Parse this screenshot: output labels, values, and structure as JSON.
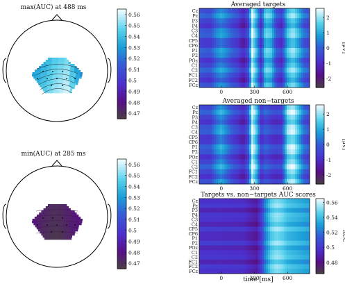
{
  "chart_data": [
    {
      "type": "heatmap",
      "subtype": "scalp-topography",
      "title": "max(AUC) at 488 ms",
      "colormap": "light-cyan-to-purple",
      "clim": [
        0.465,
        0.565
      ],
      "colorbar_ticks": [
        "0.56",
        "0.55",
        "0.54",
        "0.53",
        "0.52",
        "0.51",
        "0.5",
        "0.49",
        "0.48",
        "0.47"
      ],
      "electrode_dots": 10,
      "values": [
        0.531,
        0.536,
        0.54,
        0.545,
        0.55,
        0.553,
        0.556,
        0.545,
        0.534,
        0.525
      ]
    },
    {
      "type": "heatmap",
      "subtype": "scalp-topography",
      "title": "min(AUC) at 285 ms",
      "colormap": "light-cyan-to-purple",
      "clim": [
        0.465,
        0.565
      ],
      "colorbar_ticks": [
        "0.56",
        "0.55",
        "0.54",
        "0.53",
        "0.52",
        "0.51",
        "0.5",
        "0.49",
        "0.48",
        "0.47"
      ],
      "electrode_dots": 10,
      "values": [
        0.478,
        0.474,
        0.471,
        0.469,
        0.468,
        0.469,
        0.472,
        0.475,
        0.477,
        0.476
      ]
    },
    {
      "type": "heatmap",
      "title": "Averaged targets",
      "channels": [
        "Cz",
        "Pz",
        "P3",
        "P4",
        "C3",
        "C4",
        "CP5",
        "CP6",
        "P1",
        "P2",
        "POz",
        "C1",
        "C2",
        "FC1",
        "FC2",
        "FCz"
      ],
      "x_ticks": [
        0,
        300,
        600
      ],
      "xlim": [
        -200,
        800
      ],
      "colorbar_ticks": [
        "2",
        "1",
        "0",
        "-1",
        "-2"
      ],
      "colorbar_label": "[μV]",
      "clim": [
        -2.6,
        2.6
      ],
      "profile_time_ms": [
        -200,
        -100,
        -50,
        0,
        50,
        100,
        150,
        200,
        250,
        280,
        320,
        360,
        400,
        450,
        500,
        550,
        600,
        650,
        700,
        750,
        800
      ],
      "profile_uV": [
        -0.3,
        -0.5,
        0.2,
        0.6,
        0.2,
        -0.3,
        -0.6,
        -1.3,
        -0.4,
        2.4,
        1.0,
        -0.8,
        1.5,
        1.2,
        -0.4,
        -0.8,
        1.2,
        1.8,
        1.0,
        0.0,
        -0.4
      ]
    },
    {
      "type": "heatmap",
      "title": "Averaged non−targets",
      "channels": [
        "Cz",
        "Pz",
        "P3",
        "P4",
        "C3",
        "C4",
        "CP5",
        "CP6",
        "P1",
        "P2",
        "POz",
        "C1",
        "C2",
        "FC1",
        "FC2",
        "FCz"
      ],
      "x_ticks": [
        0,
        300,
        600
      ],
      "xlim": [
        -200,
        800
      ],
      "colorbar_ticks": [
        "2",
        "1",
        "0",
        "-1",
        "-2"
      ],
      "colorbar_label": "[μV]",
      "clim": [
        -2.6,
        2.6
      ],
      "profile_time_ms": [
        -200,
        -100,
        -50,
        0,
        50,
        100,
        150,
        200,
        250,
        280,
        320,
        360,
        400,
        450,
        500,
        550,
        600,
        650,
        700,
        750,
        800
      ],
      "profile_uV": [
        -0.4,
        -0.5,
        0.3,
        0.8,
        0.2,
        -0.4,
        -0.7,
        -1.2,
        -0.2,
        2.5,
        1.2,
        -0.8,
        -0.2,
        -0.6,
        -0.8,
        -0.6,
        1.8,
        2.2,
        1.2,
        0.0,
        -0.5
      ]
    },
    {
      "type": "heatmap",
      "title": "Targets vs. non−targets AUC scores",
      "channels": [
        "Cz",
        "Pz",
        "P3",
        "P4",
        "C3",
        "C4",
        "CP5",
        "CP6",
        "P1",
        "P2",
        "POz",
        "C1",
        "C2",
        "FC1",
        "FC2",
        "FCz"
      ],
      "x_ticks": [
        0,
        300,
        600
      ],
      "xlim": [
        -200,
        800
      ],
      "xlabel": "time [ms]",
      "colorbar_ticks": [
        "0.56",
        "0.54",
        "0.52",
        "0.5",
        "0.48"
      ],
      "colorbar_label": "AUC",
      "clim": [
        0.465,
        0.565
      ],
      "profile_time_ms": [
        -200,
        0,
        200,
        280,
        320,
        360,
        400,
        450,
        500,
        550,
        600,
        700,
        800
      ],
      "profile_auc": [
        0.497,
        0.496,
        0.495,
        0.488,
        0.485,
        0.5,
        0.525,
        0.545,
        0.552,
        0.548,
        0.54,
        0.535,
        0.53
      ]
    }
  ]
}
